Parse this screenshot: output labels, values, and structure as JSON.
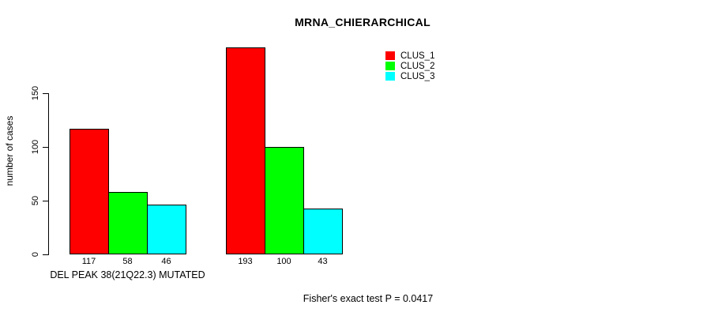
{
  "chart_data": {
    "type": "bar",
    "title": "MRNA_CHIERARCHICAL",
    "ylabel": "number of cases",
    "xlabel": "",
    "categories": [
      "DEL PEAK 38(21Q22.3) MUTATED",
      ""
    ],
    "series": [
      {
        "name": "CLUS_1",
        "color": "#ff0000",
        "values": [
          117,
          193
        ]
      },
      {
        "name": "CLUS_2",
        "color": "#00ff00",
        "values": [
          58,
          100
        ]
      },
      {
        "name": "CLUS_3",
        "color": "#00ffff",
        "values": [
          46,
          43
        ]
      }
    ],
    "bar_value_labels": [
      [
        117,
        58,
        46
      ],
      [
        193,
        100,
        43
      ]
    ],
    "yticks": [
      0,
      50,
      100,
      150
    ],
    "ylim": [
      0,
      200
    ],
    "grid": false,
    "legend_position": "top-right",
    "bar_border_color": "#000000",
    "annotation": "Fisher's exact test P = 0.0417"
  }
}
